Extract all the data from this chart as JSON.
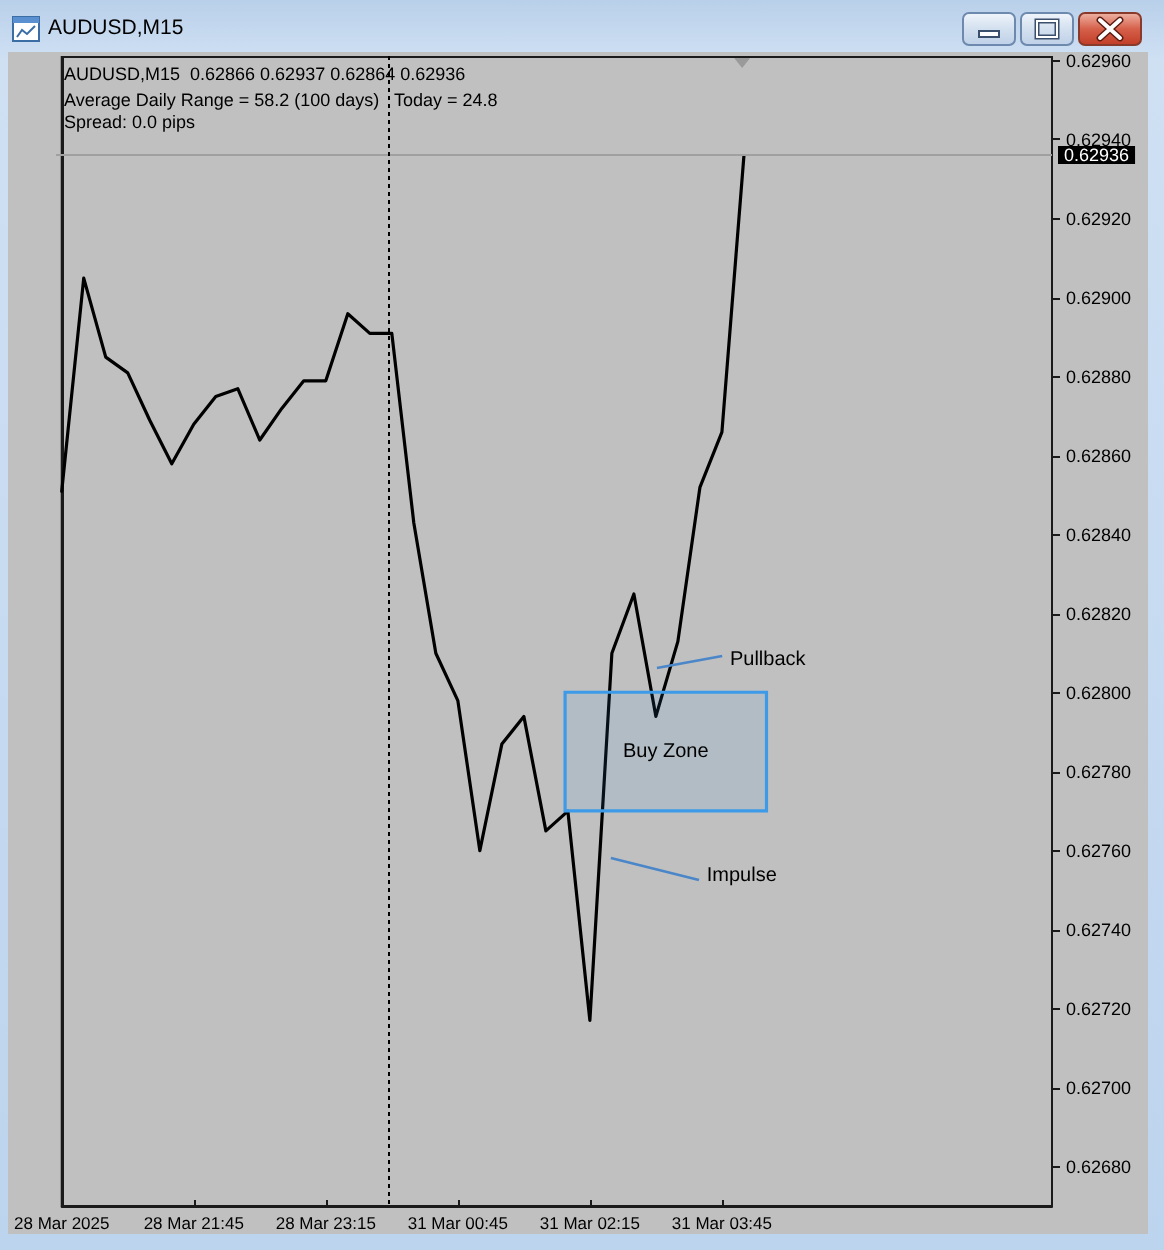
{
  "chart_data": {
    "type": "line",
    "title": "AUDUSD,M15",
    "subtitle": "AUDUSD,M15  0.62866 0.62937 0.62864 0.62936",
    "annotations": [
      "Average Daily Range = 58.2 (100 days)",
      "Today = 24.8",
      "Spread: 0.0 pips",
      "Pullback",
      "Impulse"
    ],
    "categories": [
      "28 Mar 2025",
      null,
      null,
      null,
      null,
      null,
      "28 Mar 21:45",
      null,
      null,
      null,
      null,
      null,
      "28 Mar 23:15",
      null,
      null,
      null,
      null,
      null,
      "31 Mar 00:45",
      null,
      null,
      null,
      null,
      null,
      "31 Mar 02:15",
      null,
      null,
      null,
      null,
      null,
      "31 Mar 03:45",
      null
    ],
    "values": [
      0.62851,
      0.62905,
      0.62885,
      0.62881,
      0.62869,
      0.62858,
      0.62868,
      0.62875,
      0.62877,
      0.62864,
      0.62872,
      0.62879,
      0.62879,
      0.62896,
      0.62891,
      0.62891,
      0.62843,
      0.6281,
      0.62798,
      0.6276,
      0.62787,
      0.62794,
      0.62765,
      0.6277,
      0.62717,
      0.6281,
      0.62825,
      0.62794,
      0.62813,
      0.62852,
      0.62866,
      0.62936
    ],
    "color": "#000000",
    "line_style": "solid",
    "ylim": [
      0.6267,
      0.62961
    ],
    "yticks": [
      {
        "value": 0.6268,
        "label": "0.62680"
      },
      {
        "value": 0.627,
        "label": "0.62700"
      },
      {
        "value": 0.6272,
        "label": "0.62720"
      },
      {
        "value": 0.6274,
        "label": "0.62740"
      },
      {
        "value": 0.6276,
        "label": "0.62760"
      },
      {
        "value": 0.6278,
        "label": "0.62780"
      },
      {
        "value": 0.628,
        "label": "0.62800"
      },
      {
        "value": 0.6282,
        "label": "0.62820"
      },
      {
        "value": 0.6284,
        "label": "0.62840"
      },
      {
        "value": 0.6286,
        "label": "0.62860"
      },
      {
        "value": 0.6288,
        "label": "0.62880"
      },
      {
        "value": 0.629,
        "label": "0.62900"
      },
      {
        "value": 0.6292,
        "label": "0.62920"
      },
      {
        "value": 0.6294,
        "label": "0.62940"
      },
      {
        "value": 0.6296,
        "label": "0.62960"
      }
    ],
    "ref_lines": [
      {
        "axis": "y",
        "value": 0.62936,
        "label": "0.62936",
        "color": "#a0a0a0",
        "line_style": "solid"
      }
    ],
    "bands": [
      {
        "axis": "y",
        "from": 0.6277,
        "to": 0.628,
        "label": "Buy Zone",
        "color": "#3c9ae8"
      }
    ]
  }
}
